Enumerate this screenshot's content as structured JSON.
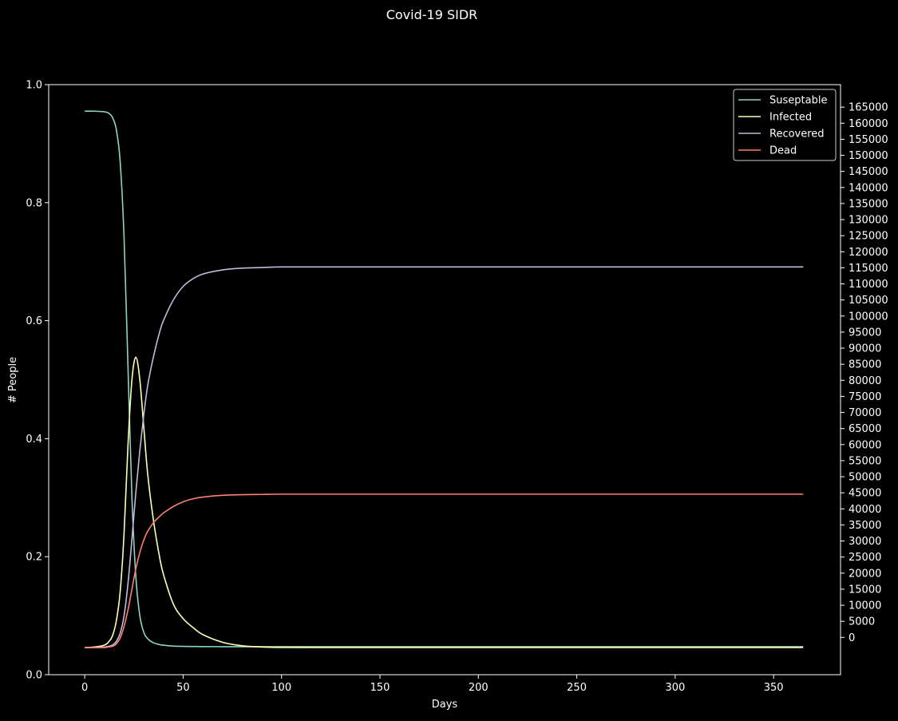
{
  "chart_data": {
    "type": "line",
    "title": "Covid-19 SIDR",
    "xlabel": "Days",
    "ylabel": "# People",
    "xlim": [
      -18.3,
      384
    ],
    "ylim": [
      0,
      1
    ],
    "x_ticks": [
      0,
      50,
      100,
      150,
      200,
      250,
      300,
      350
    ],
    "y_ticks": [
      0.0,
      0.2,
      0.4,
      0.6,
      0.8,
      1.0
    ],
    "y_tick_labels": [
      "0.0",
      "0.2",
      "0.4",
      "0.6",
      "0.8",
      "1.0"
    ],
    "y2_ticks": [
      0,
      5000,
      10000,
      15000,
      20000,
      25000,
      30000,
      35000,
      40000,
      45000,
      50000,
      55000,
      60000,
      65000,
      70000,
      75000,
      80000,
      85000,
      90000,
      95000,
      100000,
      105000,
      110000,
      115000,
      120000,
      125000,
      130000,
      135000,
      140000,
      145000,
      150000,
      155000,
      160000,
      165000
    ],
    "y2_tick_labels": [
      "0",
      "5000",
      "10000",
      "15000",
      "20000",
      "25000",
      "30000",
      "35000",
      "40000",
      "45000",
      "50000",
      "55000",
      "60000",
      "65000",
      "70000",
      "75000",
      "80000",
      "85000",
      "90000",
      "95000",
      "100000",
      "105000",
      "110000",
      "115000",
      "120000",
      "125000",
      "130000",
      "135000",
      "140000",
      "145000",
      "150000",
      "155000",
      "160000",
      "165000"
    ],
    "y2_range_at_y0_y1": [
      -11600,
      172000
    ],
    "grid": false,
    "legend_position": "top-right",
    "background": "#000000",
    "x": [
      0,
      5,
      10,
      12,
      14,
      16,
      18,
      20,
      22,
      24,
      26,
      28,
      30,
      32,
      35,
      38,
      40,
      45,
      50,
      55,
      60,
      70,
      80,
      90,
      100,
      120,
      150,
      200,
      250,
      300,
      365
    ],
    "series": [
      {
        "name": "Suseptable",
        "color": "#8dd3c7",
        "values": [
          0.955,
          0.955,
          0.954,
          0.952,
          0.945,
          0.925,
          0.87,
          0.74,
          0.52,
          0.3,
          0.165,
          0.1,
          0.072,
          0.061,
          0.054,
          0.051,
          0.05,
          0.0485,
          0.048,
          0.0478,
          0.0476,
          0.0475,
          0.0475,
          0.0475,
          0.0475,
          0.0475,
          0.0475,
          0.0475,
          0.0475,
          0.0475,
          0.0475
        ]
      },
      {
        "name": "Infected",
        "color": "#feffb3",
        "values": [
          0.046,
          0.047,
          0.05,
          0.055,
          0.065,
          0.09,
          0.14,
          0.24,
          0.39,
          0.5,
          0.538,
          0.5,
          0.42,
          0.34,
          0.26,
          0.2,
          0.17,
          0.12,
          0.095,
          0.08,
          0.068,
          0.055,
          0.049,
          0.047,
          0.0462,
          0.046,
          0.046,
          0.046,
          0.046,
          0.046,
          0.046
        ]
      },
      {
        "name": "Recovered",
        "color": "#bfbbd9",
        "values": [
          0.046,
          0.046,
          0.047,
          0.048,
          0.05,
          0.056,
          0.07,
          0.1,
          0.155,
          0.23,
          0.31,
          0.38,
          0.44,
          0.49,
          0.54,
          0.58,
          0.6,
          0.635,
          0.658,
          0.671,
          0.679,
          0.686,
          0.689,
          0.69,
          0.691,
          0.691,
          0.691,
          0.691,
          0.691,
          0.691,
          0.691
        ]
      },
      {
        "name": "Dead",
        "color": "#fa8174",
        "values": [
          0.046,
          0.046,
          0.046,
          0.047,
          0.048,
          0.052,
          0.062,
          0.082,
          0.11,
          0.145,
          0.18,
          0.207,
          0.228,
          0.243,
          0.258,
          0.268,
          0.274,
          0.285,
          0.293,
          0.298,
          0.301,
          0.304,
          0.305,
          0.3055,
          0.306,
          0.306,
          0.306,
          0.306,
          0.306,
          0.306,
          0.306
        ]
      }
    ]
  }
}
